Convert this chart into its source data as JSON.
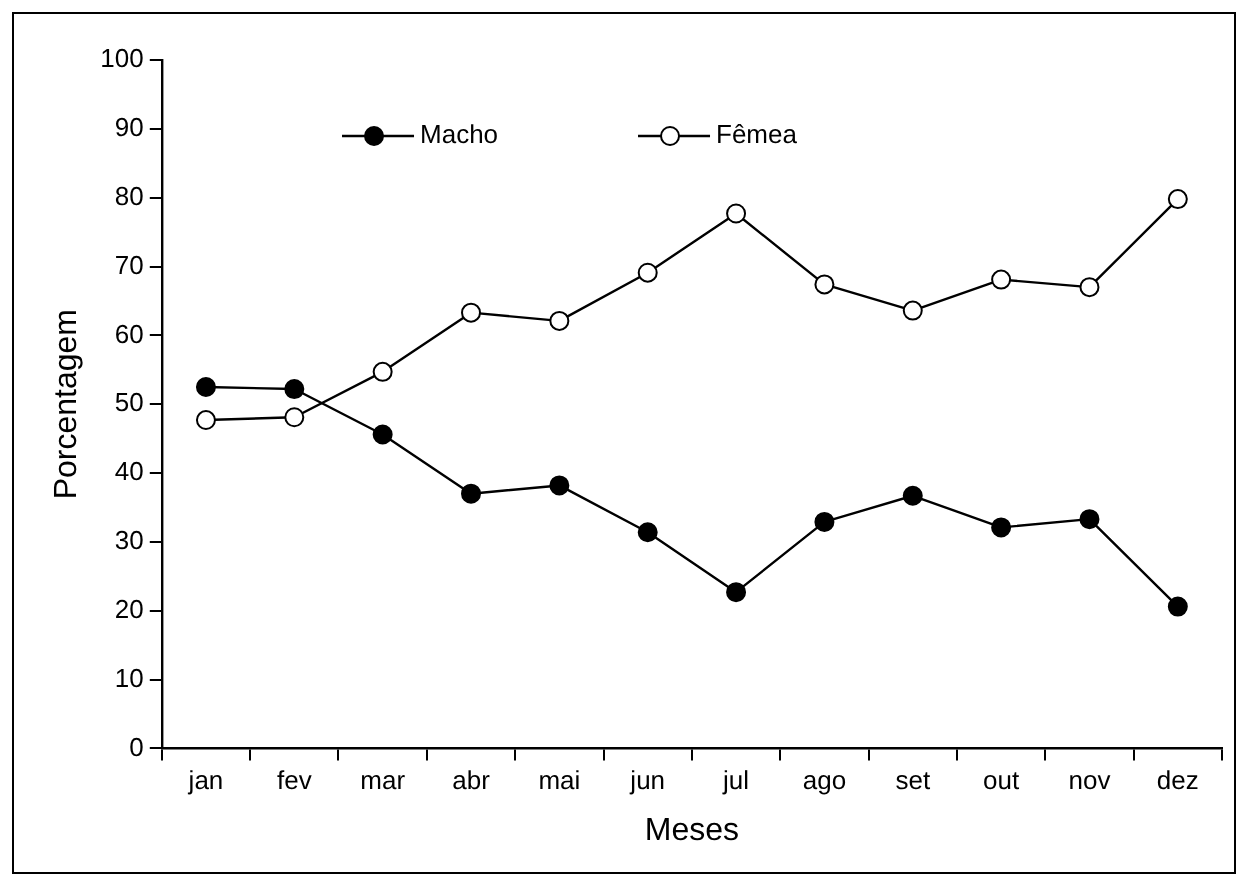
{
  "chart_data": {
    "type": "line",
    "xlabel": "Meses",
    "ylabel": "Porcentagem",
    "categories": [
      "jan",
      "fev",
      "mar",
      "abr",
      "mai",
      "jun",
      "jul",
      "ago",
      "set",
      "out",
      "nov",
      "dez"
    ],
    "series": [
      {
        "name": "Macho",
        "color": "#000000",
        "marker": "circle",
        "values": [
          52.5,
          52.2,
          45.6,
          37.0,
          38.2,
          31.4,
          22.7,
          32.9,
          36.7,
          32.1,
          33.3,
          20.6
        ]
      },
      {
        "name": "Fêmea",
        "color": "#ffffff",
        "marker": "circle",
        "values": [
          47.7,
          48.1,
          54.7,
          63.3,
          62.1,
          69.1,
          77.7,
          67.4,
          63.6,
          68.1,
          67.0,
          79.8
        ]
      }
    ],
    "ylim": [
      0,
      100
    ],
    "yticks": [
      0,
      10,
      20,
      30,
      40,
      50,
      60,
      70,
      80,
      90,
      100
    ],
    "grid": false,
    "legend": "top",
    "line_style": "solid"
  }
}
